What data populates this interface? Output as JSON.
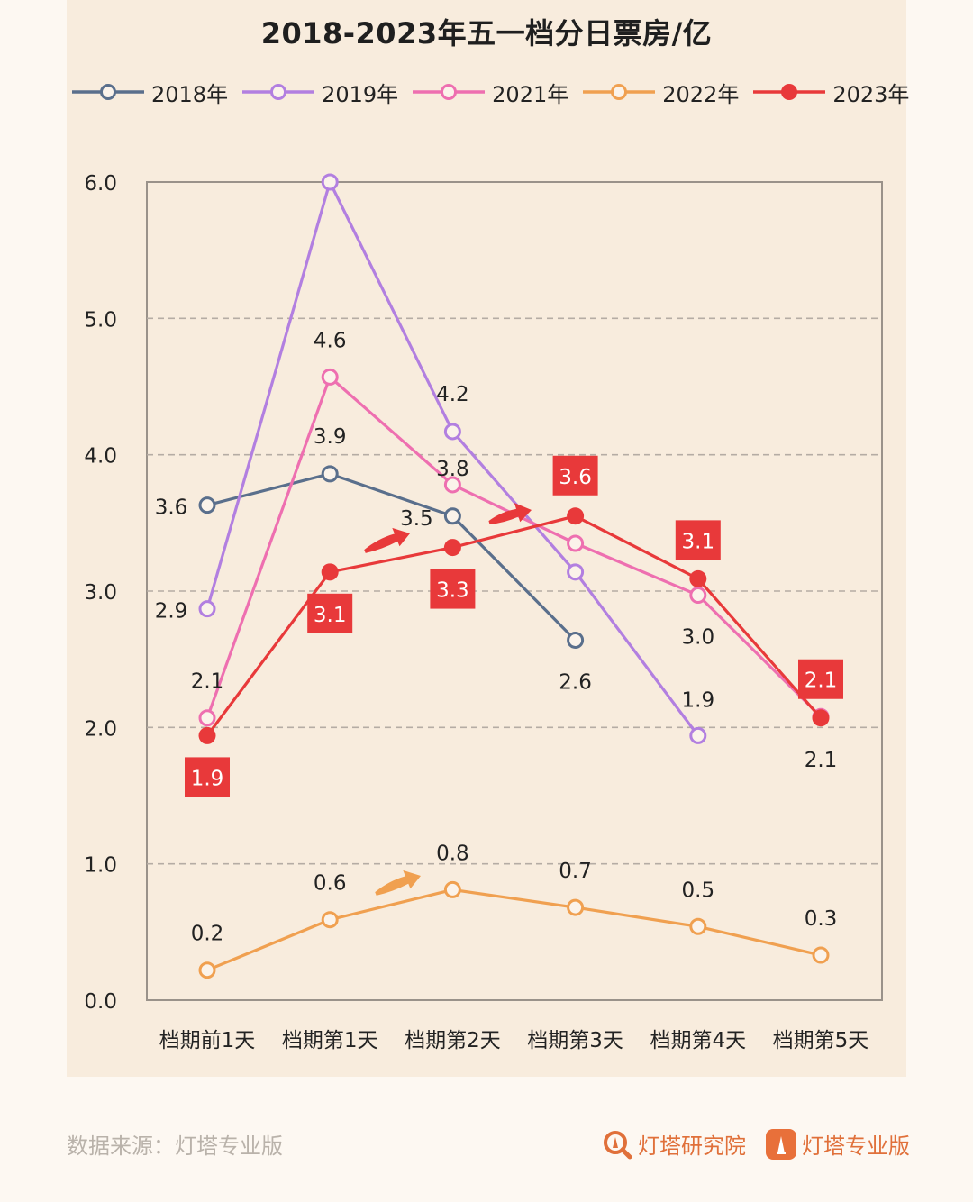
{
  "title": "2018-2023年五一档分日票房/亿",
  "footer": {
    "source": "数据来源：灯塔专业版",
    "brand_research": "灯塔研究院",
    "brand_pro": "灯塔专业版"
  },
  "colors": {
    "2018年": "#5a6f8c",
    "2019年": "#b27fe0",
    "2021年": "#ee6fb0",
    "2022年": "#f0a050",
    "2023年": "#e8393a",
    "grid": "#b5aca4",
    "axis": "#9a928a"
  },
  "chart_data": {
    "type": "line",
    "title": "2018-2023年五一档分日票房/亿",
    "categories": [
      "档期前1天",
      "档期第1天",
      "档期第2天",
      "档期第3天",
      "档期第4天",
      "档期第5天"
    ],
    "y_ticks": [
      "0.0",
      "1.0",
      "2.0",
      "3.0",
      "4.0",
      "5.0",
      "6.0"
    ],
    "ylim": [
      0,
      6
    ],
    "grid": "horizontal dashed",
    "legend_position": "top",
    "series": [
      {
        "name": "2018年",
        "marker": "hollow",
        "values": [
          3.63,
          3.86,
          3.55,
          2.64,
          null,
          null
        ],
        "labels": [
          "3.6",
          "3.9",
          "3.5",
          "2.6",
          null,
          null
        ]
      },
      {
        "name": "2019年",
        "marker": "hollow",
        "values": [
          2.87,
          6.0,
          4.17,
          3.14,
          1.94,
          null
        ],
        "labels": [
          "2.9",
          null,
          "4.2",
          null,
          "1.9",
          null
        ]
      },
      {
        "name": "2021年",
        "marker": "hollow",
        "values": [
          2.07,
          4.57,
          3.78,
          3.35,
          2.97,
          2.08
        ],
        "labels": [
          "2.1",
          "4.6",
          "3.8",
          null,
          "3.0",
          "2.1"
        ]
      },
      {
        "name": "2022年",
        "marker": "hollow",
        "values": [
          0.22,
          0.59,
          0.81,
          0.68,
          0.54,
          0.33
        ],
        "labels": [
          "0.2",
          "0.6",
          "0.8",
          "0.7",
          "0.5",
          "0.3"
        ]
      },
      {
        "name": "2023年",
        "marker": "filled",
        "values": [
          1.94,
          3.14,
          3.32,
          3.55,
          3.09,
          2.07
        ],
        "labels": [
          "1.9",
          "3.1",
          "3.3",
          "3.6",
          "3.1",
          "2.1"
        ]
      }
    ]
  }
}
